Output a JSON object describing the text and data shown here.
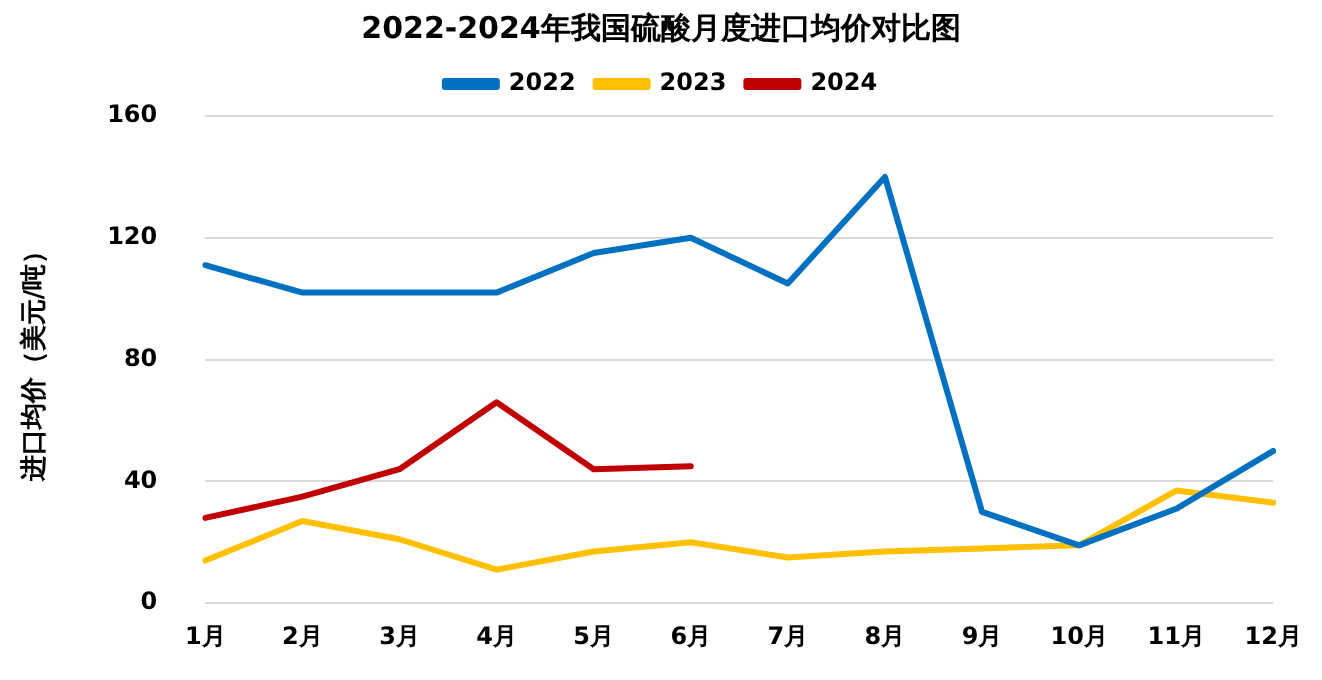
{
  "chart_data": {
    "type": "line",
    "title": "2022-2024年我国硫酸月度进口均价对比图",
    "ylabel": "进口均价（美元/吨）",
    "categories": [
      "1月",
      "2月",
      "3月",
      "4月",
      "5月",
      "6月",
      "7月",
      "8月",
      "9月",
      "10月",
      "11月",
      "12月"
    ],
    "series": [
      {
        "name": "2022",
        "color": "#0070c0",
        "values": [
          111,
          102,
          102,
          102,
          115,
          120,
          105,
          140,
          30,
          19,
          31,
          50
        ]
      },
      {
        "name": "2023",
        "color": "#ffc000",
        "values": [
          14,
          27,
          21,
          11,
          17,
          20,
          15,
          17,
          18,
          19,
          37,
          33
        ]
      },
      {
        "name": "2024",
        "color": "#c00000",
        "values": [
          28,
          35,
          44,
          66,
          44,
          45,
          null,
          null,
          null,
          null,
          null,
          null
        ]
      }
    ],
    "ylim": [
      0,
      160
    ],
    "yticks": [
      0,
      40,
      80,
      120,
      160
    ],
    "grid": "y",
    "legend": "top",
    "marker": "none",
    "line_style": "solid"
  }
}
